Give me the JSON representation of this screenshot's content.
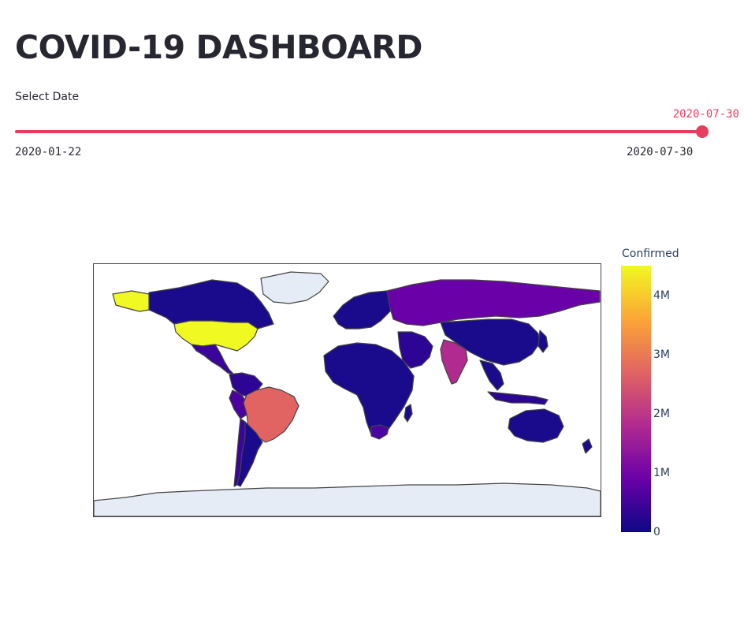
{
  "page": {
    "title": "COVID-19 DASHBOARD"
  },
  "slider": {
    "label": "Select Date",
    "min": "2020-01-22",
    "max": "2020-07-30",
    "value": "2020-07-30",
    "position": 1.0,
    "accent_color": "#e83e5e"
  },
  "map": {
    "colorbar_title": "Confirmed",
    "colorscale": [
      "#0d0887",
      "#6a00a8",
      "#b12a90",
      "#e16462",
      "#fca636",
      "#f0f921"
    ],
    "colorbar_ticks": [
      "0",
      "1M",
      "2M",
      "3M",
      "4M"
    ],
    "colorbar_tick_values": [
      0,
      1000000,
      2000000,
      3000000,
      4000000
    ],
    "colorbar_max": 4500000,
    "ocean_color": "#ffffff",
    "land_color_no_data": "#e5ecf6",
    "border_color": "#444444"
  }
}
